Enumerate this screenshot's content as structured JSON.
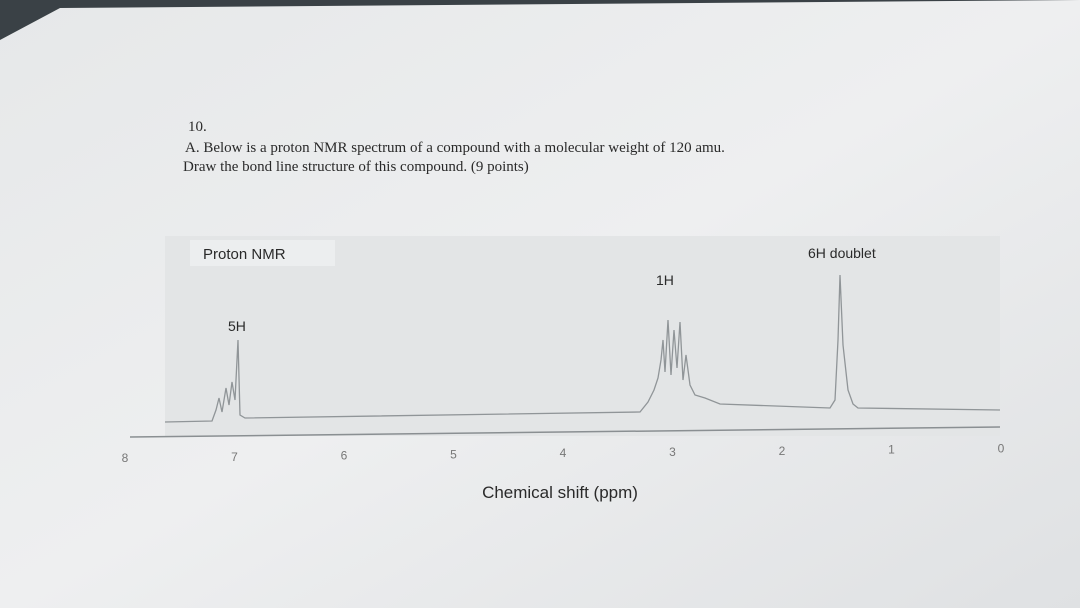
{
  "question": {
    "number": "10.",
    "line1": "A. Below is a proton NMR spectrum of a compound with a molecular weight of 120 amu.",
    "line2": "Draw the bond line structure of this compound. (9 points)"
  },
  "spectrum": {
    "title": "Proton NMR",
    "peak_labels": [
      "5H",
      "1H",
      "6H doublet"
    ],
    "xticks": [
      8,
      7,
      6,
      5,
      4,
      3,
      2,
      1,
      0
    ],
    "xlabel": "Chemical shift (ppm)"
  }
}
